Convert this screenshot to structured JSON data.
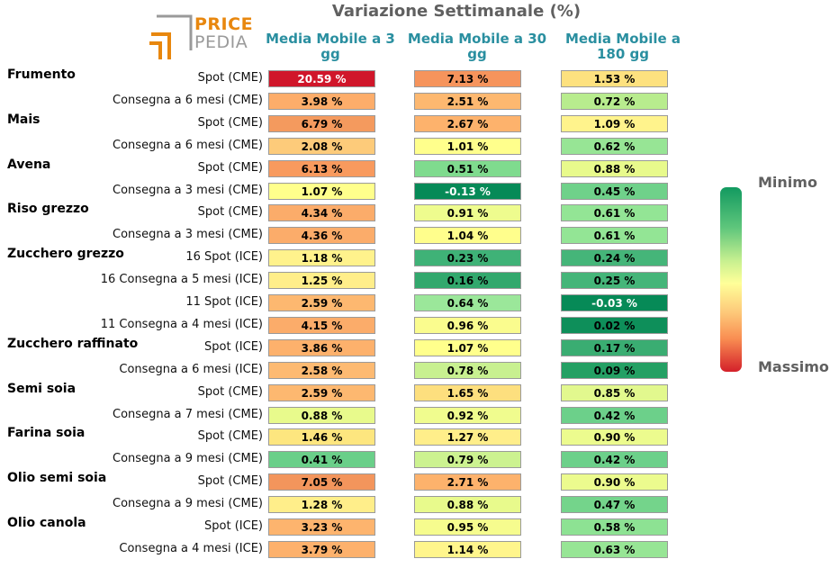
{
  "title": "Variazione Settimanale (%)",
  "logo": {
    "line1": "PRICE",
    "line2": "PEDIA"
  },
  "columns": [
    "Media Mobile a 3 gg",
    "Media Mobile a 30 gg",
    "Media Mobile a 180 gg"
  ],
  "legend": {
    "top_label": "Minimo",
    "bottom_label": "Massimo"
  },
  "chart_data": {
    "type": "table",
    "title": "Variazione Settimanale (%)",
    "column_headers": [
      "Media Mobile a 3 gg",
      "Media Mobile a 30 gg",
      "Media Mobile a 180 gg"
    ],
    "rows": [
      {
        "group": "Frumento",
        "label": "Spot (CME)",
        "values": [
          "20.59 %",
          "7.13 %",
          "1.53 %"
        ],
        "colors": [
          "#d0162a",
          "#f6945c",
          "#fde17f"
        ]
      },
      {
        "group": "",
        "label": "Consegna a 6 mesi (CME)",
        "values": [
          "3.98 %",
          "2.51 %",
          "0.72 %"
        ],
        "colors": [
          "#fdad6a",
          "#fdb870",
          "#b8ec8e"
        ]
      },
      {
        "group": "Mais",
        "label": "Spot (CME)",
        "values": [
          "6.79 %",
          "2.67 %",
          "1.09 %"
        ],
        "colors": [
          "#f49a5e",
          "#fdb26c",
          "#fff38c"
        ]
      },
      {
        "group": "",
        "label": "Consegna a 6 mesi (CME)",
        "values": [
          "2.08 %",
          "1.01 %",
          "0.62 %"
        ],
        "colors": [
          "#fdcb7a",
          "#ffff8c",
          "#97e595"
        ]
      },
      {
        "group": "Avena",
        "label": "Spot (CME)",
        "values": [
          "6.13 %",
          "0.51 %",
          "0.88 %"
        ],
        "colors": [
          "#f89a5e",
          "#7fdb8e",
          "#e8fa8c"
        ]
      },
      {
        "group": "",
        "label": "Consegna a 3 mesi (CME)",
        "values": [
          "1.07 %",
          "-0.13 %",
          "0.45 %"
        ],
        "colors": [
          "#ffff8c",
          "#068a57",
          "#6fd18a"
        ]
      },
      {
        "group": "Riso grezzo",
        "label": "Spot (CME)",
        "values": [
          "4.34 %",
          "0.91 %",
          "0.61 %"
        ],
        "colors": [
          "#fbac6a",
          "#eefc8e",
          "#93e595"
        ]
      },
      {
        "group": "",
        "label": "Consegna a 3 mesi (CME)",
        "values": [
          "4.36 %",
          "1.04 %",
          "0.61 %"
        ],
        "colors": [
          "#fbac6a",
          "#fffe8c",
          "#93e595"
        ]
      },
      {
        "group": "Zucchero grezzo",
        "label": "16 Spot (ICE)",
        "values": [
          "1.18 %",
          "0.23 %",
          "0.24 %"
        ],
        "colors": [
          "#fff28c",
          "#3fb277",
          "#45b579"
        ]
      },
      {
        "group": "",
        "label": "16 Consegna a 5 mesi (ICE)",
        "values": [
          "1.25 %",
          "0.16 %",
          "0.25 %"
        ],
        "colors": [
          "#ffee8a",
          "#32a86d",
          "#45b579"
        ]
      },
      {
        "group": "",
        "label": "11 Spot (ICE)",
        "values": [
          "2.59 %",
          "0.64 %",
          "-0.03 %"
        ],
        "colors": [
          "#fdb870",
          "#9be79a",
          "#068a57"
        ]
      },
      {
        "group": "",
        "label": "11 Consegna a 4 mesi (ICE)",
        "values": [
          "4.15 %",
          "0.96 %",
          "0.02 %"
        ],
        "colors": [
          "#fbac6a",
          "#fafc8e",
          "#0e8f5a"
        ]
      },
      {
        "group": "Zucchero raffinato",
        "label": "Spot (ICE)",
        "values": [
          "3.86 %",
          "1.07 %",
          "0.17 %"
        ],
        "colors": [
          "#fdb16c",
          "#ffff8c",
          "#3aad72"
        ]
      },
      {
        "group": "",
        "label": "Consegna a 6 mesi (ICE)",
        "values": [
          "2.58 %",
          "0.78 %",
          "0.09 %"
        ],
        "colors": [
          "#fdba72",
          "#c8f090",
          "#24a064"
        ]
      },
      {
        "group": "Semi soia",
        "label": "Spot (CME)",
        "values": [
          "2.59 %",
          "1.65 %",
          "0.85 %"
        ],
        "colors": [
          "#fdb870",
          "#fddf7e",
          "#e2f88e"
        ]
      },
      {
        "group": "",
        "label": "Consegna a 7 mesi (CME)",
        "values": [
          "0.88 %",
          "0.92 %",
          "0.42 %"
        ],
        "colors": [
          "#e8fa8c",
          "#f0fc8e",
          "#6cd08a"
        ]
      },
      {
        "group": "Farina soia",
        "label": "Spot (CME)",
        "values": [
          "1.46 %",
          "1.27 %",
          "0.90 %"
        ],
        "colors": [
          "#fde67f",
          "#ffee8a",
          "#ecfb8e"
        ]
      },
      {
        "group": "",
        "label": "Consegna a 9 mesi (CME)",
        "values": [
          "0.41 %",
          "0.79 %",
          "0.42 %"
        ],
        "colors": [
          "#6acf89",
          "#ccf290",
          "#6cd08a"
        ]
      },
      {
        "group": "Olio semi soia",
        "label": "Spot (CME)",
        "values": [
          "7.05 %",
          "2.71 %",
          "0.90 %"
        ],
        "colors": [
          "#f3955c",
          "#fdb26c",
          "#ecfb8e"
        ]
      },
      {
        "group": "",
        "label": "Consegna a 9 mesi (CME)",
        "values": [
          "1.28 %",
          "0.88 %",
          "0.47 %"
        ],
        "colors": [
          "#ffee8a",
          "#e8fa8c",
          "#74d48b"
        ]
      },
      {
        "group": "Olio canola",
        "label": "Spot (ICE)",
        "values": [
          "3.23 %",
          "0.95 %",
          "0.58 %"
        ],
        "colors": [
          "#fdb46e",
          "#f6fc8e",
          "#8de293"
        ]
      },
      {
        "group": "",
        "label": "Consegna a 4 mesi (ICE)",
        "values": [
          "3.79 %",
          "1.14 %",
          "0.63 %"
        ],
        "colors": [
          "#fdb16c",
          "#fff58c",
          "#97e595"
        ]
      }
    ],
    "legend": {
      "top": "Minimo",
      "bottom": "Massimo"
    }
  }
}
